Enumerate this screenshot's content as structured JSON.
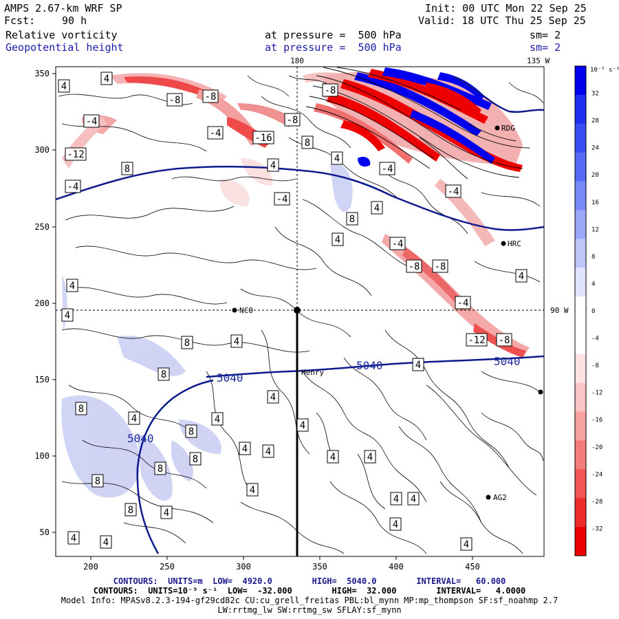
{
  "header": {
    "model": "AMPS 2.67-km WRF SP",
    "init": "Init: 00 UTC Mon 22 Sep 25",
    "fcst_label": "Fcst:",
    "fcst_value": "90 h",
    "valid": "Valid: 18 UTC Thu 25 Sep 25",
    "field1_name": "Relative vorticity",
    "field1_level": "at pressure =  500 hPa",
    "field1_sm": "sm= 2",
    "field2_name": "Geopotential height",
    "field2_level": "at pressure =  500 hPa",
    "field2_sm": "sm= 2"
  },
  "map": {
    "lon_top": "180",
    "lon_topright": "135 W",
    "lon_right": "90 W",
    "x_ticks": [
      "200",
      "250",
      "300",
      "350",
      "400",
      "450"
    ],
    "y_ticks": [
      "350",
      "300",
      "250",
      "200",
      "150",
      "100",
      "50"
    ],
    "stations": [
      {
        "id": "RDG",
        "label": "RDG"
      },
      {
        "id": "HRC",
        "label": "HRC"
      },
      {
        "id": "NCO",
        "label": "NCO"
      },
      {
        "id": "henry",
        "label": "Henry"
      },
      {
        "id": "AG2",
        "label": "AG2"
      }
    ],
    "height_labels": [
      "5040",
      "5040",
      "5040",
      "5040"
    ],
    "vort_labels": [
      "4",
      "4",
      "-8",
      "-8",
      "-4",
      "-12",
      "8",
      "-4",
      "-8",
      "-4",
      "-16",
      "8",
      "4",
      "4",
      "-4",
      "-8",
      "4",
      "-4",
      "-4",
      "8",
      "4",
      "-4",
      "-8",
      "-8",
      "4",
      "4",
      "4",
      "-4",
      "-12",
      "-8",
      "8",
      "4",
      "8",
      "4",
      "4",
      "8",
      "4",
      "4",
      "8",
      "8",
      "8",
      "4",
      "4",
      "4",
      "4",
      "4",
      "8",
      "8",
      "4",
      "4",
      "4",
      "4",
      "4",
      "4",
      "4",
      "4"
    ]
  },
  "colorbar": {
    "unit_label": "10⁻⁵ s⁻¹",
    "ticks": [
      "32",
      "28",
      "24",
      "20",
      "16",
      "12",
      "8",
      "4",
      "0",
      "-4",
      "-8",
      "-12",
      "-16",
      "-20",
      "-24",
      "-28",
      "-32"
    ],
    "colors": [
      "#0000ee",
      "#2030f0",
      "#3a4ef2",
      "#5569f4",
      "#7888f5",
      "#9aa6f7",
      "#bfc6fa",
      "#dfe3fd",
      "#ffffff",
      "#ffffff",
      "#fde3e3",
      "#fbc4c4",
      "#f8a2a2",
      "#f57c7c",
      "#f25555",
      "#f02b2b",
      "#ee0000"
    ]
  },
  "footer": {
    "line1_a": "CONTOURS:  UNITS=m  LOW=  4920.0",
    "line1_b": "HIGH=  5040.0",
    "line1_c": "INTERVAL=   60.000",
    "line2_a": "CONTOURS:  UNITS=10⁻⁵ s⁻¹  LOW=  -32.000",
    "line2_b": "HIGH=  32.000",
    "line2_c": "INTERVAL=   4.0000",
    "line3": "Model Info: MPASv8.2.3-194-gf29cd82c CU:cu_grell_freitas PBL:bl_mynn MP:mp_thompson SF:sf_noahmp 2.7",
    "line4": "LW:rrtmg_lw SW:rrtmg_sw SFLAY:sf_mynn"
  }
}
